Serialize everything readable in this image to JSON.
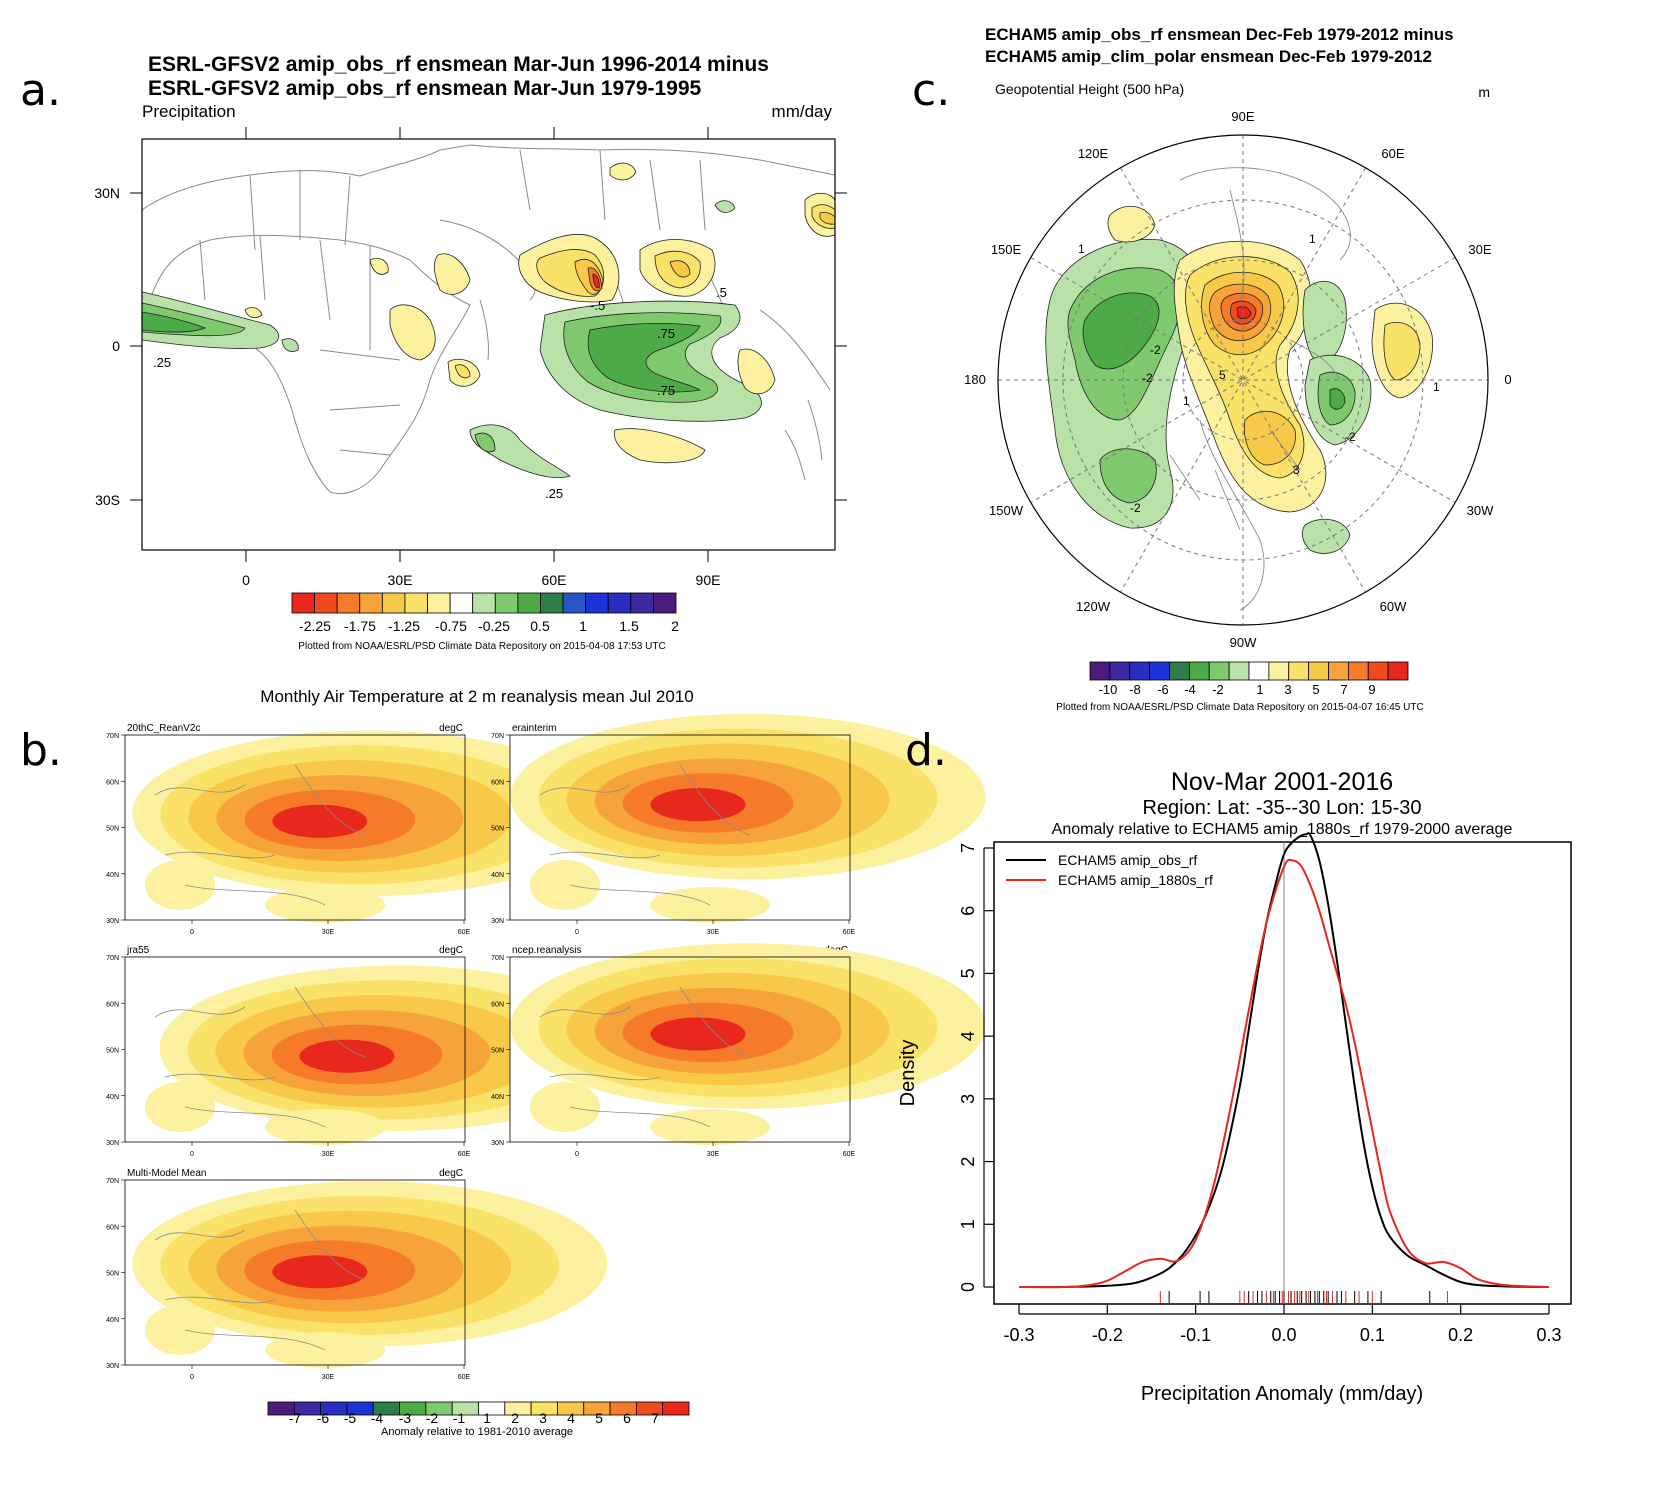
{
  "panel_labels": [
    "a.",
    "b.",
    "c.",
    "d."
  ],
  "colors": {
    "precip_scale": [
      "#e8281d",
      "#f04a1f",
      "#f57b2a",
      "#f6a33a",
      "#f8c948",
      "#fae268",
      "#fcf19f",
      "#ffffff",
      "#b9e2a8",
      "#7ec96e",
      "#4cab47",
      "#2f7d49",
      "#2a55c5",
      "#1b33d8",
      "#2a2dbf",
      "#3d2aa0",
      "#4b1b7e"
    ],
    "temp_scale": [
      "#4b1b7e",
      "#3d2aa0",
      "#2a2dbf",
      "#1b33d8",
      "#2f7d49",
      "#4cab47",
      "#7ec96e",
      "#b9e2a8",
      "#ffffff",
      "#fcf19f",
      "#fae268",
      "#f8c948",
      "#f6a33a",
      "#f57b2a",
      "#f04a1f",
      "#e8281d"
    ],
    "height_scale": [
      "#4b1b7e",
      "#3d2aa0",
      "#2a2dbf",
      "#1b33d8",
      "#2f7d49",
      "#4cab47",
      "#7ec96e",
      "#b9e2a8",
      "#ffffff",
      "#fcf19f",
      "#fae268",
      "#f8c948",
      "#f6a33a",
      "#f57b2a",
      "#f04a1f",
      "#e8281d"
    ]
  },
  "panel_a": {
    "title_line1": "ESRL-GFSV2 amip_obs_rf ensmean Mar-Jun 1996-2014 minus",
    "title_line2": "ESRL-GFSV2 amip_obs_rf ensmean Mar-Jun 1979-1995",
    "left_label": "Precipitation",
    "right_label": "mm/day",
    "lat_labels": [
      "30N",
      "0",
      "30S"
    ],
    "lon_labels": [
      "0",
      "30E",
      "60E",
      "90E"
    ],
    "contour_labels": [
      ".25",
      "-.5",
      ".5",
      ".75",
      ".75",
      ".25"
    ],
    "colorbar_labels": [
      "-2.25",
      "-1.75",
      "-1.25",
      "-0.75",
      "-0.25",
      "0.5",
      "1",
      "1.5",
      "2"
    ],
    "credit": "Plotted from NOAA/ESRL/PSD Climate Data Repository on 2015-04-08 17:53 UTC"
  },
  "panel_b": {
    "title": "Monthly Air Temperature at 2 m reanalysis mean Jul 2010",
    "unit": "degC",
    "maps": [
      {
        "name": "20thC_ReanV2c"
      },
      {
        "name": "erainterim"
      },
      {
        "name": "jra55"
      },
      {
        "name": "ncep.reanalysis"
      },
      {
        "name": "Multi-Model Mean"
      }
    ],
    "lat_labels": [
      "70N",
      "60N",
      "50N",
      "40N",
      "30N"
    ],
    "lon_labels": [
      "0",
      "30E",
      "60E"
    ],
    "colorbar_labels": [
      "-7",
      "-6",
      "-5",
      "-4",
      "-3",
      "-2",
      "-1",
      "1",
      "2",
      "3",
      "4",
      "5",
      "6",
      "7"
    ],
    "caption": "Anomaly relative to 1981-2010 average"
  },
  "panel_c": {
    "title_line1": "ECHAM5 amip_obs_rf ensmean Dec-Feb 1979-2012 minus",
    "title_line2": "ECHAM5 amip_clim_polar ensmean Dec-Feb 1979-2012",
    "left_label": "Geopotential Height (500 hPa)",
    "right_label": "m",
    "lon_labels": [
      "90E",
      "60E",
      "30E",
      "0",
      "30W",
      "60W",
      "90W",
      "120W",
      "150W",
      "180",
      "150E",
      "120E"
    ],
    "contour_labels": [
      "1",
      "-2",
      "-2",
      "5",
      "1",
      "1",
      "-2",
      "3",
      "-2",
      "1"
    ],
    "colorbar_labels": [
      "-10",
      "-8",
      "-6",
      "-4",
      "-2",
      "1",
      "3",
      "5",
      "7",
      "9"
    ],
    "credit": "Plotted from NOAA/ESRL/PSD Climate Data Repository on 2015-04-07 16:45 UTC"
  },
  "chart_data": {
    "type": "line",
    "title": "Nov-Mar 2001-2016",
    "subtitle": "Region: Lat: -35--30 Lon: 15-30",
    "subtitle2": "Anomaly relative to ECHAM5 amip_1880s_rf 1979-2000 average",
    "xlabel": "Precipitation Anomaly (mm/day)",
    "ylabel": "Density",
    "xlim": [
      -0.3,
      0.3
    ],
    "ylim": [
      0,
      7.3
    ],
    "xticks": [
      "-0.3",
      "-0.2",
      "-0.1",
      "0.0",
      "0.1",
      "0.2",
      "0.3"
    ],
    "yticks": [
      "0",
      "1",
      "2",
      "3",
      "4",
      "5",
      "6",
      "7"
    ],
    "legend_position": "top-left",
    "vertical_line_x": 0.0,
    "series": [
      {
        "name": "ECHAM5 amip_obs_rf",
        "color": "#000000",
        "x": [
          -0.3,
          -0.25,
          -0.2,
          -0.17,
          -0.15,
          -0.13,
          -0.11,
          -0.09,
          -0.07,
          -0.05,
          -0.04,
          -0.03,
          -0.02,
          -0.01,
          0.0,
          0.01,
          0.02,
          0.025,
          0.03,
          0.04,
          0.05,
          0.06,
          0.07,
          0.08,
          0.09,
          0.1,
          0.11,
          0.12,
          0.14,
          0.16,
          0.18,
          0.2,
          0.22,
          0.25,
          0.3
        ],
        "y": [
          0.0,
          0.0,
          0.02,
          0.06,
          0.15,
          0.3,
          0.6,
          1.1,
          1.9,
          3.2,
          4.1,
          5.0,
          5.8,
          6.4,
          6.9,
          7.1,
          7.2,
          7.22,
          7.2,
          6.8,
          6.1,
          5.2,
          4.2,
          3.2,
          2.3,
          1.6,
          1.1,
          0.8,
          0.5,
          0.35,
          0.2,
          0.08,
          0.03,
          0.01,
          0.0
        ]
      },
      {
        "name": "ECHAM5 amip_1880s_rf",
        "color": "#e8261f",
        "x": [
          -0.3,
          -0.25,
          -0.22,
          -0.2,
          -0.18,
          -0.16,
          -0.14,
          -0.12,
          -0.1,
          -0.08,
          -0.06,
          -0.04,
          -0.02,
          0.0,
          0.01,
          0.02,
          0.03,
          0.04,
          0.05,
          0.06,
          0.07,
          0.08,
          0.09,
          0.1,
          0.11,
          0.12,
          0.14,
          0.16,
          0.18,
          0.2,
          0.22,
          0.25,
          0.3
        ],
        "y": [
          0.0,
          0.0,
          0.03,
          0.1,
          0.25,
          0.4,
          0.45,
          0.42,
          0.75,
          1.6,
          2.9,
          4.4,
          5.8,
          6.7,
          6.8,
          6.7,
          6.4,
          6.0,
          5.5,
          5.0,
          4.5,
          3.9,
          3.2,
          2.5,
          1.8,
          1.2,
          0.6,
          0.38,
          0.4,
          0.3,
          0.12,
          0.03,
          0.0
        ]
      }
    ],
    "rug_black": [
      -0.13,
      -0.095,
      -0.085,
      -0.04,
      -0.03,
      -0.025,
      -0.015,
      -0.01,
      -0.005,
      0.0,
      0.008,
      0.015,
      0.02,
      0.025,
      0.03,
      0.035,
      0.04,
      0.045,
      0.05,
      0.06,
      0.065,
      0.08,
      0.095,
      0.11,
      0.165
    ],
    "rug_red": [
      -0.14,
      -0.05,
      -0.045,
      -0.035,
      -0.02,
      -0.012,
      -0.002,
      0.005,
      0.012,
      0.018,
      0.028,
      0.038,
      0.048,
      0.055,
      0.07,
      0.085,
      0.1,
      0.185
    ]
  }
}
